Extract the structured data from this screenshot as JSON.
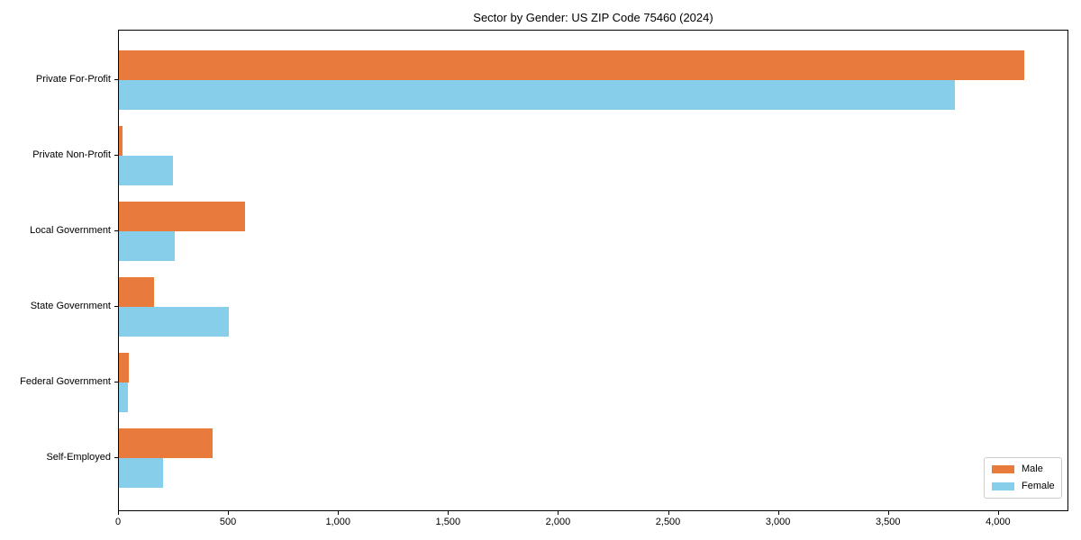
{
  "chart_data": {
    "type": "bar",
    "orientation": "horizontal",
    "title": "Sector by Gender: US ZIP Code 75460 (2024)",
    "categories": [
      "Private For-Profit",
      "Private Non-Profit",
      "Local Government",
      "State Government",
      "Federal Government",
      "Self-Employed"
    ],
    "series": [
      {
        "name": "Male",
        "color": "#e87a3b",
        "values": [
          4115,
          15,
          575,
          160,
          45,
          425
        ]
      },
      {
        "name": "Female",
        "color": "#87ceeb",
        "values": [
          3800,
          245,
          255,
          500,
          40,
          200
        ]
      }
    ],
    "xlabel": "",
    "ylabel": "",
    "xlim": [
      0,
      4320
    ],
    "xticks": {
      "values": [
        0,
        500,
        1000,
        1500,
        2000,
        2500,
        3000,
        3500,
        4000
      ],
      "labels": [
        "0",
        "500",
        "1,000",
        "1,500",
        "2,000",
        "2,500",
        "3,000",
        "3,500",
        "4,000"
      ]
    },
    "legend": {
      "position": "lower right",
      "entries": [
        "Male",
        "Female"
      ]
    },
    "grid": false,
    "colors": {
      "axis": "#000000",
      "background": "#ffffff",
      "legend_border": "#cccccc",
      "text": "#000000"
    }
  }
}
